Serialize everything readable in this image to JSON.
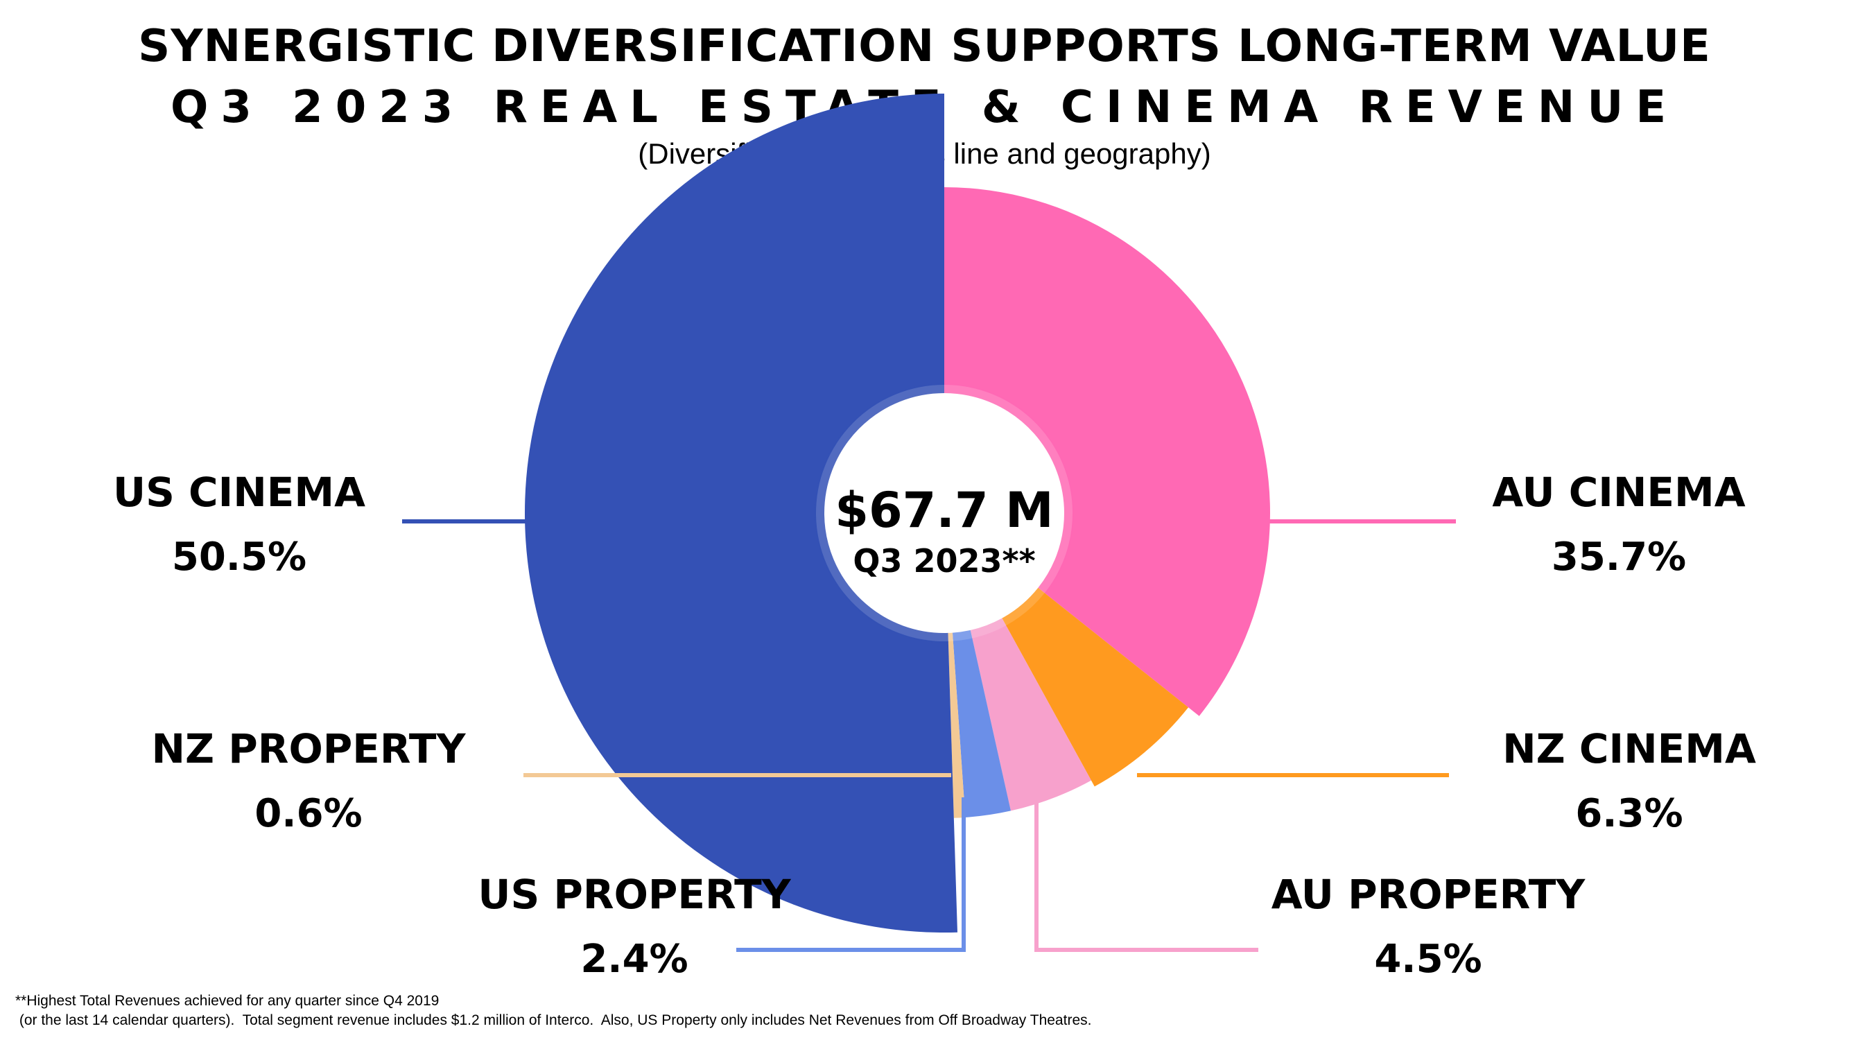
{
  "header": {
    "title": "SYNERGISTIC DIVERSIFICATION SUPPORTS LONG-TERM VALUE",
    "subtitle": "Q3 2023 REAL ESTATE & CINEMA REVENUE",
    "note": "(Diversified by business line and geography)"
  },
  "chart_data": {
    "type": "pie",
    "title": "Q3 2023 REAL ESTATE & CINEMA REVENUE",
    "center_value": "$67.7 M",
    "center_label": "Q3 2023**",
    "slices": [
      {
        "name": "AU CINEMA",
        "value": 35.7,
        "label": "35.7%",
        "color": "#ff69b4"
      },
      {
        "name": "NZ CINEMA",
        "value": 6.3,
        "label": "6.3%",
        "color": "#ff9a1f"
      },
      {
        "name": "AU PROPERTY",
        "value": 4.5,
        "label": "4.5%",
        "color": "#f7a1cc"
      },
      {
        "name": "US PROPERTY",
        "value": 2.4,
        "label": "2.4%",
        "color": "#6b8fe8"
      },
      {
        "name": "NZ PROPERTY",
        "value": 0.6,
        "label": "0.6%",
        "color": "#f3c995"
      },
      {
        "name": "US CINEMA",
        "value": 50.5,
        "label": "50.5%",
        "color": "#3451b5"
      }
    ]
  },
  "footer": {
    "line1": "**Highest Total Revenues achieved for any quarter since Q4 2019",
    "line2": " (or the last 14 calendar quarters).  Total segment revenue includes $1.2 million of Interco.  Also, US Property only includes Net Revenues from Off Broadway Theatres."
  }
}
